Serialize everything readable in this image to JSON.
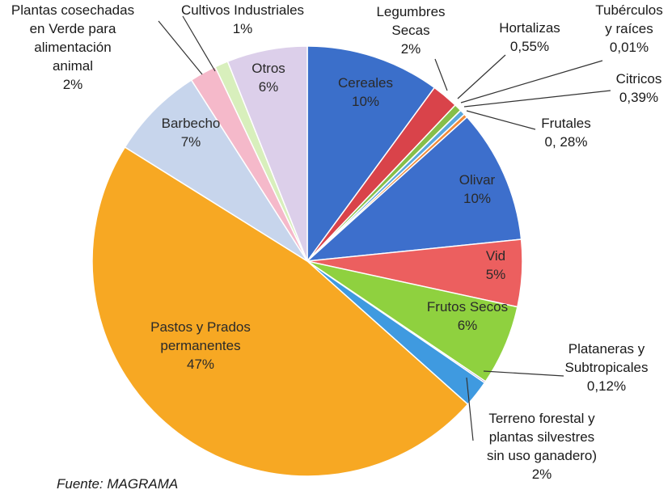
{
  "chart_data": {
    "type": "pie",
    "categories": [
      "Cereales",
      "Legumbres\nSecas",
      "Hortalizas",
      "Tubérculos\ny raíces",
      "Citricos",
      "Frutales",
      "Olivar",
      "Vid",
      "Frutos Secos",
      "Plataneras y\nSubtropicales",
      "Terreno forestal y\nplantas silvestres\nsin uso ganadero)",
      "Pastos y Prados\npermanentes",
      "Barbecho",
      "Plantas cosechadas\nen Verde para\nalimentación\nanimal",
      "Cultivos Industriales",
      "Otros"
    ],
    "values": [
      10,
      2,
      0.55,
      0.01,
      0.39,
      0.28,
      10,
      5,
      6,
      0.12,
      2,
      47,
      7,
      2,
      1,
      6
    ],
    "value_labels": [
      "10%",
      "2%",
      "0,55%",
      "0,01%",
      "0,39%",
      "0, 28%",
      "10%",
      "5%",
      "6%",
      "0,12%",
      "2%",
      "47%",
      "7%",
      "2%",
      "1%",
      "6%"
    ],
    "colors": [
      "#3b6fca",
      "#d9434a",
      "#86bf4a",
      "#7a5ca5",
      "#5aa7de",
      "#f08a3a",
      "#3d6fcc",
      "#ec5f5f",
      "#8fd13f",
      "#7b5ea7",
      "#3f9ae0",
      "#f7a823",
      "#c7d5ec",
      "#f5b9ca",
      "#d8efbc",
      "#dccfea"
    ],
    "source": "Fuente: MAGRAMA"
  }
}
